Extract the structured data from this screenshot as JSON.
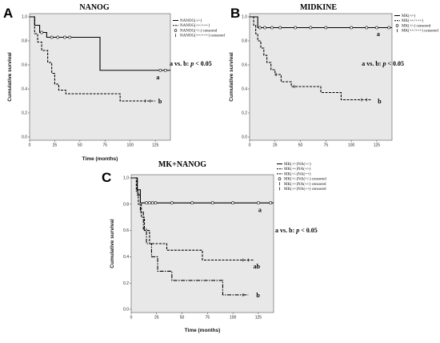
{
  "chart_data": [
    {
      "panel": "A",
      "type": "line",
      "title": "NANOG",
      "xlabel": "Time (months)",
      "ylabel": "Cumulative survival",
      "xlim": [
        0,
        140
      ],
      "ylim": [
        0,
        1.0
      ],
      "xticks": [
        "0",
        "25",
        "50",
        "75",
        "100",
        "125"
      ],
      "yticks": [
        "0.0",
        "0.2",
        "0.4",
        "0.6",
        "0.8",
        "1.0"
      ],
      "annotation": [
        "a vs. b: ",
        "p",
        " < 0.05"
      ],
      "series": [
        {
          "name": "NANOG(+/-)",
          "style": "solid",
          "steps": [
            [
              0,
              1.0
            ],
            [
              5,
              1.0
            ],
            [
              5,
              0.93
            ],
            [
              10,
              0.93
            ],
            [
              10,
              0.87
            ],
            [
              17,
              0.87
            ],
            [
              17,
              0.83
            ],
            [
              70,
              0.83
            ],
            [
              70,
              0.555
            ],
            [
              140,
              0.555
            ]
          ],
          "censored": [
            [
              12,
              0.87
            ],
            [
              22,
              0.83
            ],
            [
              28,
              0.83
            ],
            [
              35,
              0.83
            ],
            [
              40,
              0.83
            ],
            [
              130,
              0.555
            ],
            [
              135,
              0.555
            ]
          ],
          "group_label": "a",
          "group_label_at": [
            126,
            0.5
          ]
        },
        {
          "name": "NANOG(++/+++)",
          "style": "dashed",
          "steps": [
            [
              0,
              1.0
            ],
            [
              5,
              1.0
            ],
            [
              5,
              0.86
            ],
            [
              8,
              0.86
            ],
            [
              8,
              0.79
            ],
            [
              12,
              0.79
            ],
            [
              12,
              0.72
            ],
            [
              18,
              0.72
            ],
            [
              18,
              0.62
            ],
            [
              22,
              0.62
            ],
            [
              22,
              0.53
            ],
            [
              25,
              0.53
            ],
            [
              25,
              0.44
            ],
            [
              29,
              0.44
            ],
            [
              29,
              0.39
            ],
            [
              36,
              0.39
            ],
            [
              36,
              0.36
            ],
            [
              90,
              0.36
            ],
            [
              90,
              0.3
            ],
            [
              125,
              0.3
            ]
          ],
          "censored": [
            [
              115,
              0.3
            ],
            [
              120,
              0.3
            ]
          ],
          "group_label": "b",
          "group_label_at": [
            128,
            0.3
          ]
        }
      ],
      "legend": [
        "NANOG(+/-)",
        "NANOG(++/+++)",
        "NANOG(+/-) censored",
        "NANOG(++/+++) censored"
      ]
    },
    {
      "panel": "B",
      "type": "line",
      "title": "MIDKINE",
      "xlabel": "",
      "ylabel": "Cumulative survival",
      "xlim": [
        0,
        140
      ],
      "ylim": [
        0,
        1.0
      ],
      "xticks": [
        "0",
        "25",
        "50",
        "75",
        "100",
        "125"
      ],
      "yticks": [
        "0.0",
        "0.2",
        "0.4",
        "0.6",
        "0.8",
        "1.0"
      ],
      "series": [
        {
          "name": "MK(+/-)",
          "style": "solid",
          "steps": [
            [
              0,
              1.0
            ],
            [
              8,
              1.0
            ],
            [
              8,
              0.91
            ],
            [
              140,
              0.91
            ]
          ],
          "censored": [
            [
              10,
              0.91
            ],
            [
              15,
              0.91
            ],
            [
              22,
              0.91
            ],
            [
              30,
              0.91
            ],
            [
              45,
              0.91
            ],
            [
              60,
              0.91
            ],
            [
              75,
              0.91
            ],
            [
              100,
              0.91
            ],
            [
              115,
              0.91
            ],
            [
              125,
              0.91
            ],
            [
              137,
              0.91
            ]
          ],
          "group_label": "a",
          "group_label_at": [
            125,
            0.86
          ]
        },
        {
          "name": "MK(++/+++)",
          "style": "dashed",
          "steps": [
            [
              0,
              1.0
            ],
            [
              4,
              1.0
            ],
            [
              4,
              0.93
            ],
            [
              6,
              0.93
            ],
            [
              6,
              0.86
            ],
            [
              8,
              0.86
            ],
            [
              8,
              0.8
            ],
            [
              11,
              0.8
            ],
            [
              11,
              0.74
            ],
            [
              14,
              0.74
            ],
            [
              14,
              0.68
            ],
            [
              17,
              0.68
            ],
            [
              17,
              0.62
            ],
            [
              21,
              0.62
            ],
            [
              21,
              0.56
            ],
            [
              25,
              0.56
            ],
            [
              25,
              0.52
            ],
            [
              31,
              0.52
            ],
            [
              31,
              0.46
            ],
            [
              41,
              0.46
            ],
            [
              41,
              0.42
            ],
            [
              70,
              0.42
            ],
            [
              70,
              0.37
            ],
            [
              90,
              0.37
            ],
            [
              90,
              0.31
            ],
            [
              120,
              0.31
            ]
          ],
          "censored": [
            [
              26,
              0.52
            ],
            [
              44,
              0.42
            ],
            [
              110,
              0.31
            ],
            [
              115,
              0.31
            ]
          ],
          "group_label": "b",
          "group_label_at": [
            126,
            0.3
          ]
        }
      ],
      "legend": [
        "MK(+/-)",
        "MK(++/+++)",
        "MK(+/-) censored",
        "MK(++/+++) censored"
      ]
    },
    {
      "panel": "C",
      "type": "line",
      "title": "MK+NANOG",
      "xlabel": "Time (months)",
      "ylabel": "Cumulative survival",
      "xlim": [
        0,
        140
      ],
      "ylim": [
        0,
        1.0
      ],
      "xticks": [
        "0",
        "25",
        "50",
        "75",
        "100",
        "125"
      ],
      "yticks": [
        "0.0",
        "0.2",
        "0.4",
        "0.6",
        "0.8",
        "1.0"
      ],
      "annotation": [
        "a vs. b: ",
        "p",
        " < 0.05"
      ],
      "series": [
        {
          "name": "MK(+/-)NA(+/-)",
          "style": "solid",
          "steps": [
            [
              0,
              1.0
            ],
            [
              6,
              1.0
            ],
            [
              6,
              0.91
            ],
            [
              9,
              0.91
            ],
            [
              9,
              0.81
            ],
            [
              140,
              0.81
            ]
          ],
          "censored": [
            [
              15,
              0.81
            ],
            [
              18,
              0.81
            ],
            [
              21,
              0.81
            ],
            [
              24,
              0.81
            ],
            [
              40,
              0.81
            ],
            [
              60,
              0.81
            ],
            [
              80,
              0.81
            ],
            [
              100,
              0.81
            ],
            [
              125,
              0.81
            ],
            [
              137,
              0.81
            ]
          ],
          "group_label": "a",
          "group_label_at": [
            125,
            0.76
          ]
        },
        {
          "name": "MK(++)NA(+/-)",
          "style": "dashed",
          "steps": [
            [
              0,
              1.0
            ],
            [
              5,
              1.0
            ],
            [
              5,
              0.9
            ],
            [
              7,
              0.9
            ],
            [
              7,
              0.8
            ],
            [
              10,
              0.8
            ],
            [
              10,
              0.7
            ],
            [
              13,
              0.7
            ],
            [
              13,
              0.6
            ],
            [
              18,
              0.6
            ],
            [
              18,
              0.5
            ],
            [
              35,
              0.5
            ],
            [
              35,
              0.45
            ],
            [
              70,
              0.45
            ],
            [
              70,
              0.375
            ],
            [
              120,
              0.375
            ]
          ],
          "censored": [
            [
              110,
              0.375
            ],
            [
              115,
              0.375
            ]
          ],
          "group_label": "ab",
          "group_label_at": [
            120,
            0.33
          ]
        },
        {
          "name": "MK(+/-)NA(++)",
          "style": "dashdot",
          "steps": [
            [
              0,
              1.0
            ],
            [
              6,
              1.0
            ],
            [
              6,
              0.87
            ],
            [
              9,
              0.87
            ],
            [
              9,
              0.74
            ],
            [
              12,
              0.74
            ],
            [
              12,
              0.61
            ],
            [
              15,
              0.61
            ],
            [
              15,
              0.5
            ],
            [
              20,
              0.5
            ],
            [
              20,
              0.4
            ],
            [
              26,
              0.4
            ],
            [
              26,
              0.29
            ],
            [
              40,
              0.29
            ],
            [
              40,
              0.22
            ],
            [
              90,
              0.22
            ],
            [
              90,
              0.11
            ],
            [
              115,
              0.11
            ]
          ],
          "censored": [
            [
              110,
              0.11
            ]
          ],
          "group_label": "b",
          "group_label_at": [
            123,
            0.11
          ]
        }
      ],
      "legend": [
        "MK(+/-)NA(+/-)",
        "MK(++)NA(+/-)",
        "MK(+/-)NA(++)",
        "MK(+/-)NA(+/-) censored",
        "MK(++)NA(+/-) censored",
        "MK(+/-)NA(++) censored"
      ]
    }
  ]
}
